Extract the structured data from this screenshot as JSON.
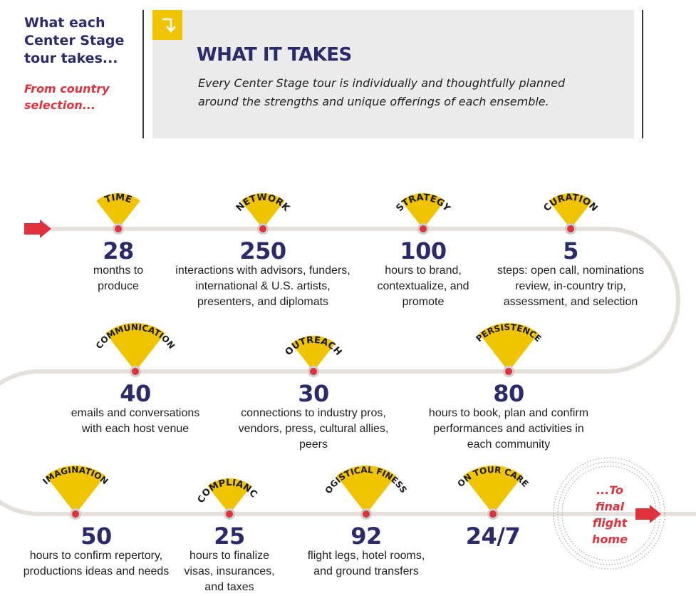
{
  "intro": {
    "title": "What each Center Stage tour takes...",
    "subtitle": "From country selection..."
  },
  "callout": {
    "title": "WHAT IT TAKES",
    "body": "Every Center Stage tour is individually and thoughtfully planned around the strengths and unique offerings of each ensemble."
  },
  "colors": {
    "navy": "#2b2a6b",
    "red": "#e0323c",
    "yellow": "#f0c400",
    "road": "#e4e0dc",
    "panel": "#ebebeb"
  },
  "milestones": [
    {
      "label": "TIME",
      "value": "28",
      "desc": "months to produce"
    },
    {
      "label": "NETWORK",
      "value": "250",
      "desc": "interactions with advisors, funders, international & U.S. artists, presenters, and diplomats"
    },
    {
      "label": "STRATEGY",
      "value": "100",
      "desc": "hours to brand, contextualize, and promote"
    },
    {
      "label": "CURATION",
      "value": "5",
      "desc": "steps: open call, nominations review, in-country trip, assessment, and selection"
    },
    {
      "label": "COMMUNICATION",
      "value": "40",
      "desc": "emails and conversations with each host venue"
    },
    {
      "label": "OUTREACH",
      "value": "30",
      "desc": "connections to industry pros, vendors, press, cultural allies, peers"
    },
    {
      "label": "PERSISTENCE",
      "value": "80",
      "desc": "hours to book, plan and confirm performances and activities in each community"
    },
    {
      "label": "IMAGINATION",
      "value": "50",
      "desc": "hours to confirm repertory, productions ideas and needs"
    },
    {
      "label": "COMPLIANCE",
      "value": "25",
      "desc": "hours to finalize visas, insurances, and taxes"
    },
    {
      "label": "LOGISTICAL FINESSE",
      "value": "92",
      "desc": "flight legs, hotel rooms, and ground transfers"
    },
    {
      "label": "ON TOUR CARE",
      "value": "24/7",
      "desc": ""
    }
  ],
  "finale": {
    "text": "...To final flight home"
  }
}
